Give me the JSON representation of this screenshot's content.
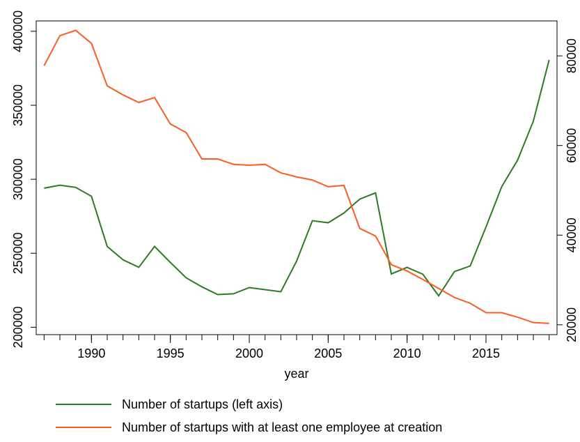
{
  "chart_data": {
    "type": "line",
    "x_label": "year",
    "x": [
      1987,
      1988,
      1989,
      1990,
      1991,
      1992,
      1993,
      1994,
      1995,
      1996,
      1997,
      1998,
      1999,
      2000,
      2001,
      2002,
      2003,
      2004,
      2005,
      2006,
      2007,
      2008,
      2009,
      2010,
      2011,
      2012,
      2013,
      2014,
      2015,
      2016,
      2017,
      2018,
      2019
    ],
    "xlim": [
      1986.5,
      2019.5
    ],
    "xticks": [
      1990,
      1995,
      2000,
      2005,
      2010,
      2015
    ],
    "xminorticks": [
      1987,
      1988,
      1989,
      1990,
      1991,
      1992,
      1993,
      1994,
      1995,
      1996,
      1997,
      1998,
      1999,
      2000,
      2001,
      2002,
      2003,
      2004,
      2005,
      2006,
      2007,
      2008,
      2009,
      2010,
      2011,
      2012,
      2013,
      2014,
      2015,
      2016,
      2017,
      2018,
      2019
    ],
    "ylim": [
      195000,
      407000
    ],
    "yticks": [
      200000,
      250000,
      300000,
      350000,
      400000
    ],
    "y2lim": [
      17800,
      87800
    ],
    "y2ticks": [
      20000,
      40000,
      60000,
      80000
    ],
    "legend": "bottom",
    "series": [
      {
        "name": "Number of startups (left axis)",
        "color": "#2a7a22",
        "axis": "y",
        "values": [
          294000,
          296000,
          294500,
          288500,
          254600,
          245600,
          240500,
          254600,
          243800,
          233400,
          227300,
          222100,
          222600,
          226800,
          225400,
          224000,
          244700,
          272000,
          270600,
          277200,
          286600,
          290800,
          236000,
          240500,
          235800,
          221200,
          237600,
          241400,
          267800,
          295100,
          312900,
          339300,
          380700
        ]
      },
      {
        "name": "Number of startups with at least one employee at creation",
        "color": "#ff5a1f",
        "axis": "y2",
        "values": [
          77800,
          84500,
          85700,
          82800,
          73300,
          71300,
          69600,
          70700,
          64800,
          62900,
          57000,
          57000,
          55800,
          55600,
          55800,
          53900,
          53000,
          52300,
          50800,
          51100,
          41500,
          39800,
          33400,
          32000,
          30100,
          28100,
          26100,
          24800,
          22700,
          22700,
          21700,
          20500,
          20300
        ]
      }
    ]
  }
}
